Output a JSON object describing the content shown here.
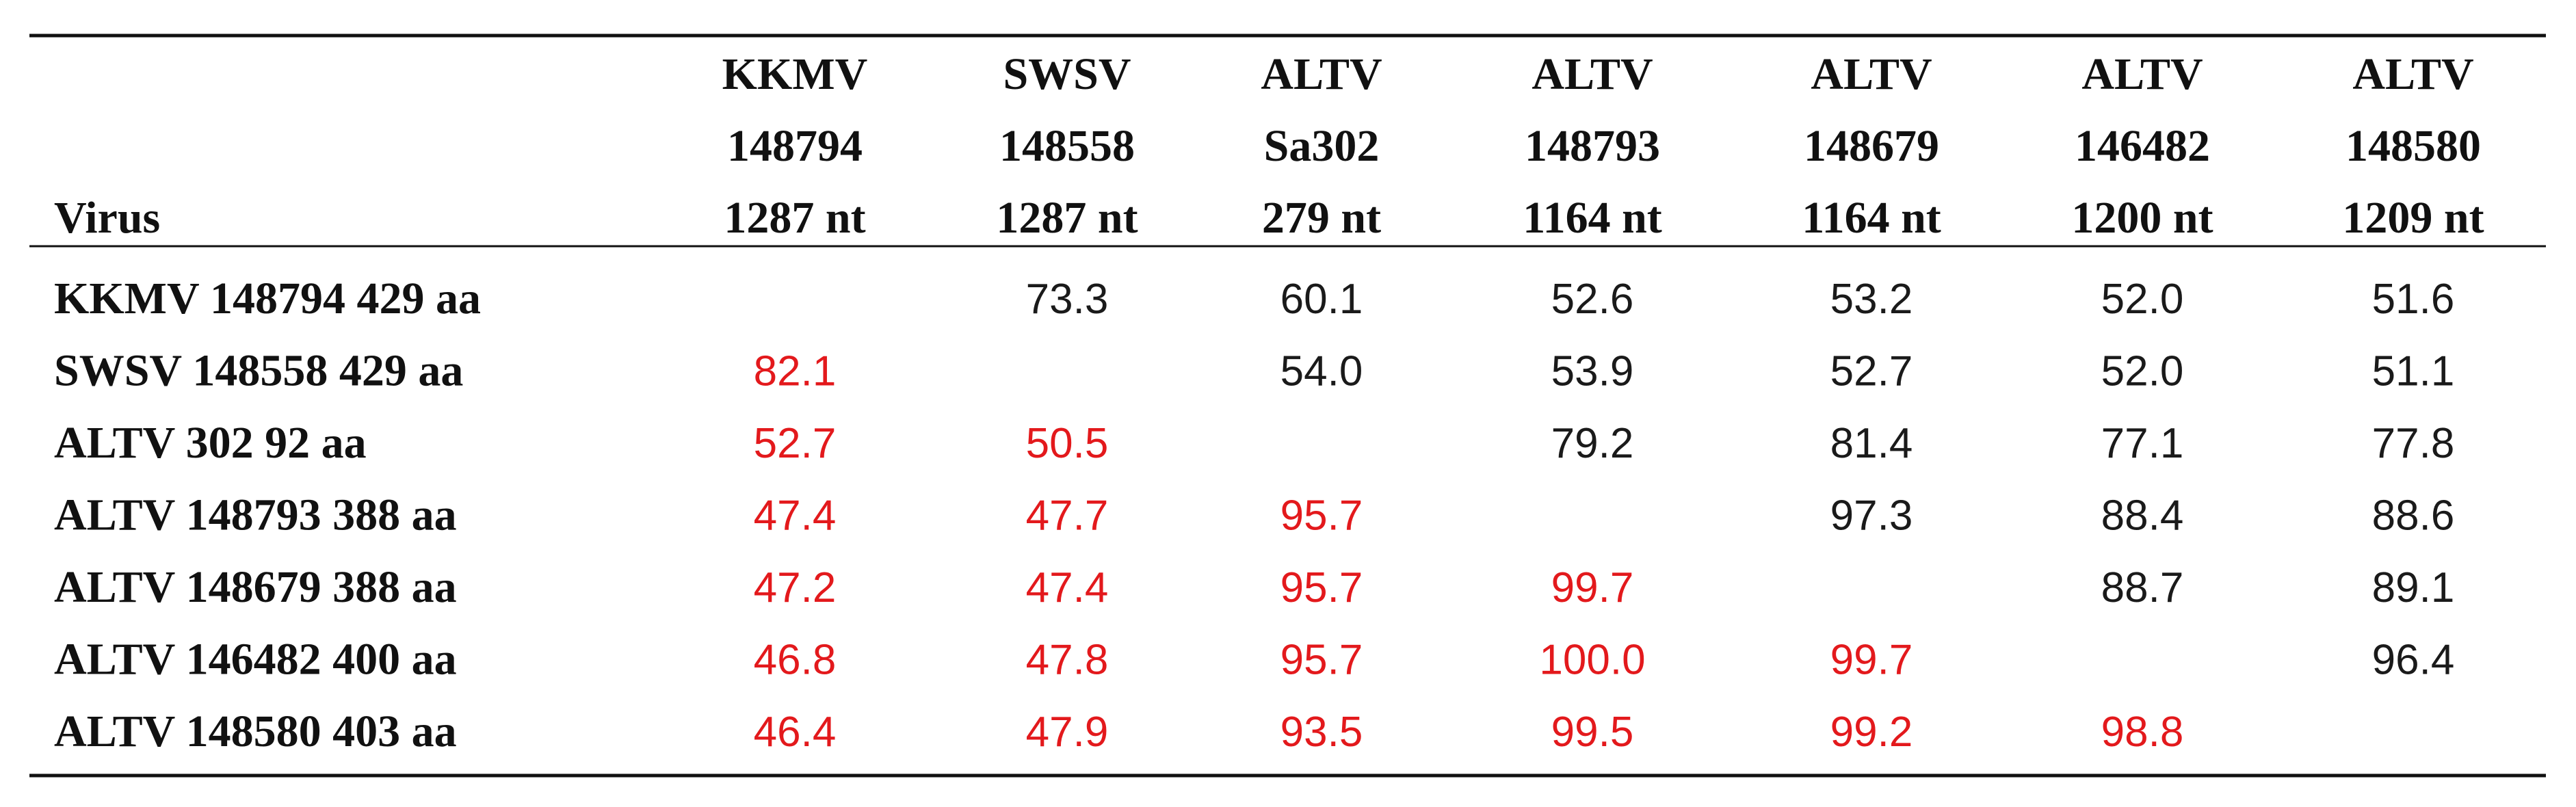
{
  "table": {
    "header": "Virus",
    "columns": [
      [
        "KKMV",
        "148794",
        "1287 nt"
      ],
      [
        "SWSV",
        "148558",
        "1287 nt"
      ],
      [
        "ALTV",
        "Sa302",
        "279 nt"
      ],
      [
        "ALTV",
        "148793",
        "1164 nt"
      ],
      [
        "ALTV",
        "148679",
        "1164 nt"
      ],
      [
        "ALTV",
        "146482",
        "1200 nt"
      ],
      [
        "ALTV",
        "148580",
        "1209 nt"
      ]
    ],
    "rows": [
      {
        "label": "KKMV 148794 429 aa",
        "cells": [
          null,
          "73.3",
          "60.1",
          "52.6",
          "53.2",
          "52.0",
          "51.6"
        ]
      },
      {
        "label": "SWSV 148558 429 aa",
        "cells": [
          "82.1",
          null,
          "54.0",
          "53.9",
          "52.7",
          "52.0",
          "51.1"
        ]
      },
      {
        "label": "ALTV 302 92 aa",
        "cells": [
          "52.7",
          "50.5",
          null,
          "79.2",
          "81.4",
          "77.1",
          "77.8"
        ]
      },
      {
        "label": "ALTV 148793 388 aa",
        "cells": [
          "47.4",
          "47.7",
          "95.7",
          null,
          "97.3",
          "88.4",
          "88.6"
        ]
      },
      {
        "label": "ALTV 148679 388 aa",
        "cells": [
          "47.2",
          "47.4",
          "95.7",
          "99.7",
          null,
          "88.7",
          "89.1"
        ]
      },
      {
        "label": "ALTV 146482 400 aa",
        "cells": [
          "46.8",
          "47.8",
          "95.7",
          "100.0",
          "99.7",
          null,
          "96.4"
        ]
      },
      {
        "label": "ALTV 148580 403 aa",
        "cells": [
          "46.4",
          "47.9",
          "93.5",
          "99.5",
          "99.2",
          "98.8",
          null
        ]
      }
    ],
    "colors": {
      "upper": "#1a1a1a",
      "lower": "#e3191c"
    }
  }
}
